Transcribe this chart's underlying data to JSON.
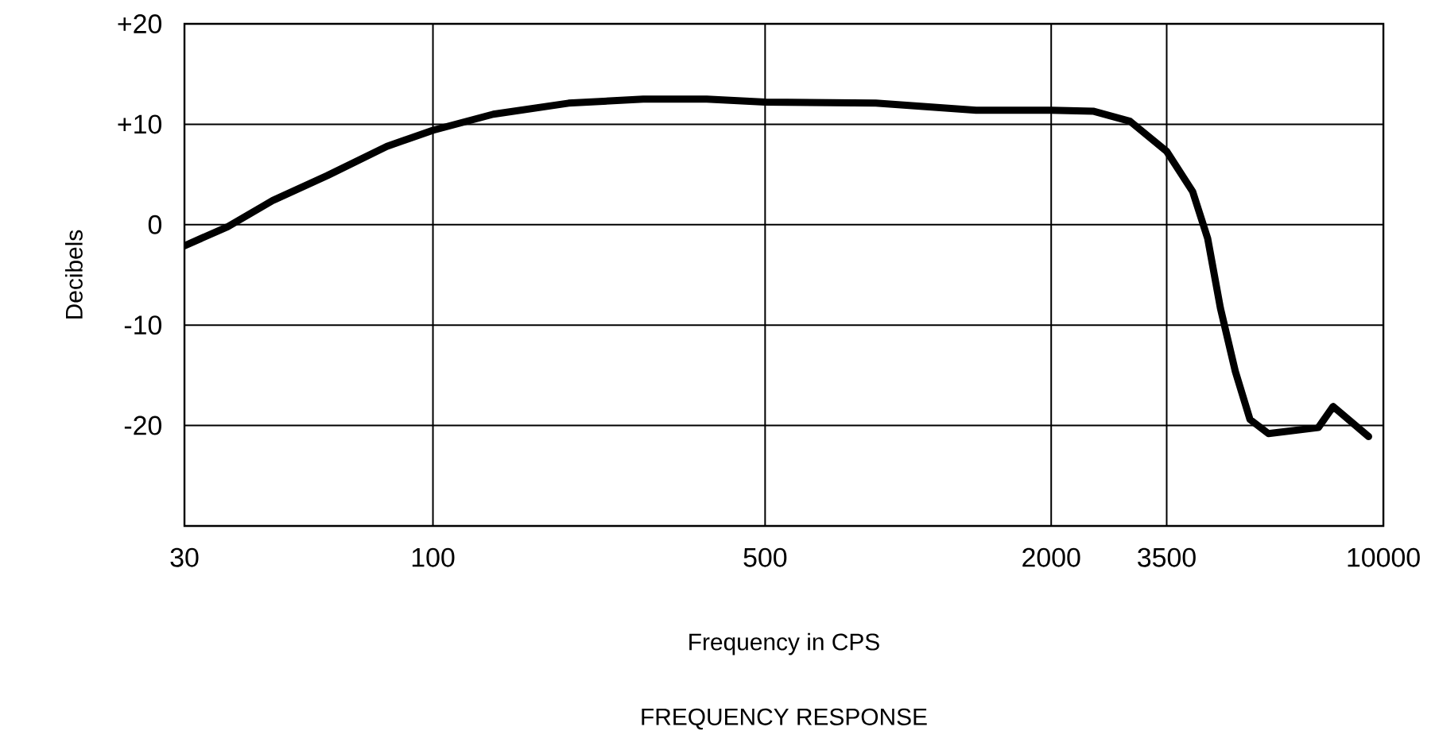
{
  "chart_data": {
    "type": "line",
    "title": "FREQUENCY RESPONSE",
    "xlabel": "Frequency in CPS",
    "ylabel": "Decibels",
    "log": "x",
    "grid": true,
    "x": [
      30,
      37,
      46,
      60,
      80,
      100,
      134,
      193,
      277,
      377,
      500,
      855,
      1390,
      2000,
      2450,
      2930,
      3500,
      3970,
      4270,
      4540,
      4880,
      5240,
      5730,
      7300,
      7840,
      9310
    ],
    "series": [
      {
        "color": "#000000",
        "values": [
          -2.1,
          -0.2,
          2.4,
          4.9,
          7.8,
          9.4,
          11.0,
          12.1,
          12.5,
          12.5,
          12.2,
          12.1,
          11.4,
          11.4,
          11.3,
          10.3,
          7.3,
          3.3,
          -1.4,
          -8.3,
          -14.6,
          -19.4,
          -20.8,
          -20.2,
          -18.1,
          -21.1
        ]
      }
    ],
    "xlim": [
      30,
      10000
    ],
    "xticks": [
      30,
      100,
      500,
      2000,
      3500,
      10000
    ],
    "ylim": [
      -30,
      20
    ],
    "yticks": [
      {
        "value": 20,
        "label": "+20"
      },
      {
        "value": 10,
        "label": "+10"
      },
      0,
      -10,
      -20
    ]
  }
}
